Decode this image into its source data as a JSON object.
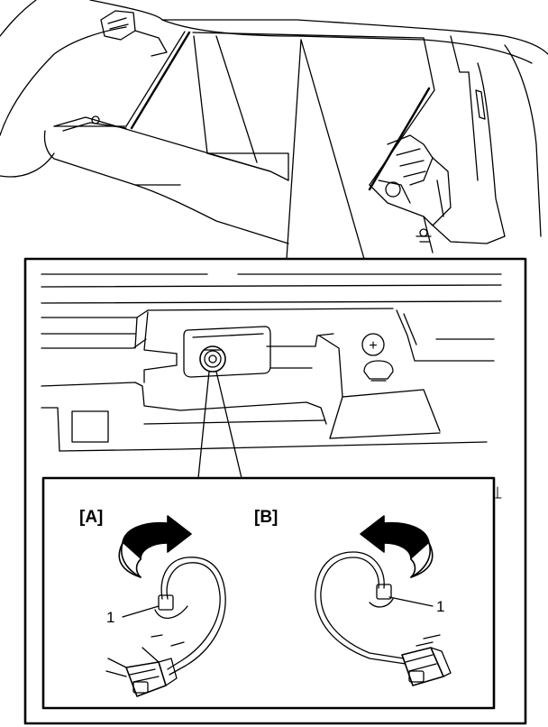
{
  "figure": {
    "labels": {
      "view_a": "[A]",
      "view_b": "[B]",
      "callout_a": "1",
      "callout_b": "1",
      "terminal_sign": "+"
    },
    "colors": {
      "line": "#000000",
      "background": "#ffffff"
    }
  }
}
